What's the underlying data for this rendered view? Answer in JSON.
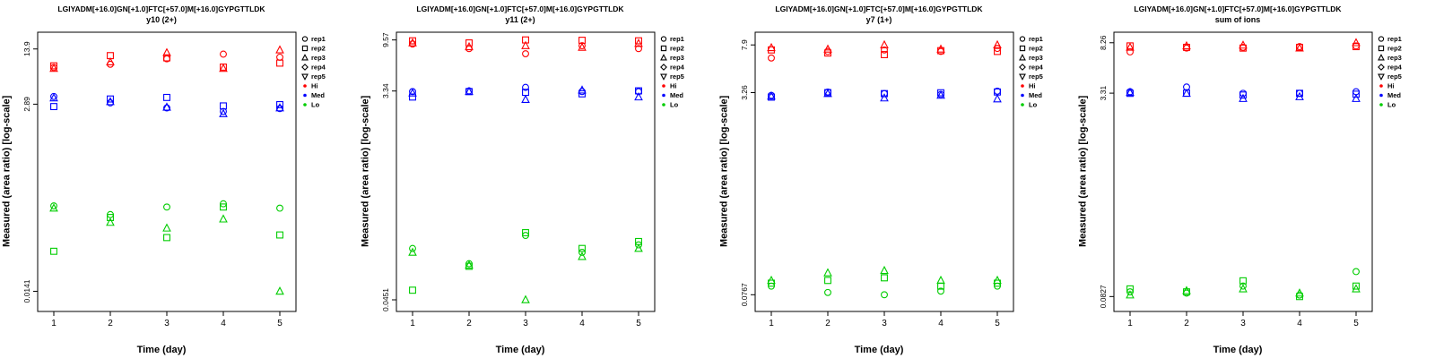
{
  "legend": {
    "rep_items": [
      {
        "label": "rep1",
        "shape": "circle"
      },
      {
        "label": "rep2",
        "shape": "square"
      },
      {
        "label": "rep3",
        "shape": "triangle"
      },
      {
        "label": "rep4",
        "shape": "diamond"
      },
      {
        "label": "rep5",
        "shape": "triangle-down"
      }
    ],
    "level_items": [
      {
        "label": "Hi",
        "color": "#FF0000"
      },
      {
        "label": "Med",
        "color": "#0000FF"
      },
      {
        "label": "Lo",
        "color": "#00CD00"
      }
    ]
  },
  "chart_data": [
    {
      "type": "scatter",
      "title": "LGIYADM[+16.0]GN[+1.0]FTC[+57.0]M[+16.0]GYPGTTLDK",
      "subtitle": "y10 (2+)",
      "xlabel": "Time (day)",
      "ylabel": "Measured (area ratio) [log-scale]",
      "x": [
        1,
        2,
        3,
        4,
        5
      ],
      "yticks": [
        {
          "label": "13.9",
          "value": 13.9
        },
        {
          "label": "2.89",
          "value": 2.89
        },
        {
          "label": "0.0141",
          "value": 0.0141
        }
      ],
      "ylim_log10": [
        -2.1,
        1.35
      ],
      "grid": false,
      "legend_position": "right",
      "series": [
        {
          "level": "Hi",
          "rep": "rep1",
          "shape": "circle",
          "color": "#FF0000",
          "values": [
            8.2,
            9.0,
            10.5,
            12.0,
            11.0
          ]
        },
        {
          "level": "Hi",
          "rep": "rep2",
          "shape": "square",
          "color": "#FF0000",
          "values": [
            8.6,
            11.5,
            10.8,
            8.3,
            9.3
          ]
        },
        {
          "level": "Hi",
          "rep": "rep3",
          "shape": "triangle",
          "color": "#FF0000",
          "values": [
            8.0,
            9.6,
            12.5,
            8.0,
            13.5
          ]
        },
        {
          "level": "Med",
          "rep": "rep1",
          "shape": "circle",
          "color": "#0000FF",
          "values": [
            3.6,
            3.0,
            2.6,
            2.35,
            2.55
          ]
        },
        {
          "level": "Med",
          "rep": "rep2",
          "shape": "square",
          "color": "#0000FF",
          "values": [
            2.7,
            3.35,
            3.5,
            2.75,
            2.85
          ]
        },
        {
          "level": "Med",
          "rep": "rep3",
          "shape": "triangle",
          "color": "#0000FF",
          "values": [
            3.45,
            3.1,
            2.65,
            2.2,
            2.6
          ]
        },
        {
          "level": "Lo",
          "rep": "rep1",
          "shape": "circle",
          "color": "#00CD00",
          "values": [
            0.16,
            0.125,
            0.155,
            0.17,
            0.15
          ]
        },
        {
          "level": "Lo",
          "rep": "rep2",
          "shape": "square",
          "color": "#00CD00",
          "values": [
            0.044,
            0.115,
            0.065,
            0.155,
            0.07
          ]
        },
        {
          "level": "Lo",
          "rep": "rep3",
          "shape": "triangle",
          "color": "#00CD00",
          "values": [
            0.15,
            0.1,
            0.085,
            0.11,
            0.0141
          ]
        }
      ]
    },
    {
      "type": "scatter",
      "title": "LGIYADM[+16.0]GN[+1.0]FTC[+57.0]M[+16.0]GYPGTTLDK",
      "subtitle": "y11 (2+)",
      "xlabel": "Time (day)",
      "ylabel": "Measured (area ratio) [log-scale]",
      "x": [
        1,
        2,
        3,
        4,
        5
      ],
      "yticks": [
        {
          "label": "9.57",
          "value": 9.57
        },
        {
          "label": "3.34",
          "value": 3.34
        },
        {
          "label": "0.0451",
          "value": 0.0451
        }
      ],
      "ylim_log10": [
        -1.45,
        1.05
      ],
      "grid": false,
      "legend_position": "right",
      "series": [
        {
          "level": "Hi",
          "rep": "rep1",
          "shape": "circle",
          "color": "#FF0000",
          "values": [
            8.8,
            8.0,
            7.2,
            8.5,
            8.0
          ]
        },
        {
          "level": "Hi",
          "rep": "rep2",
          "shape": "square",
          "color": "#FF0000",
          "values": [
            9.4,
            9.0,
            9.57,
            9.5,
            9.4
          ]
        },
        {
          "level": "Hi",
          "rep": "rep3",
          "shape": "triangle",
          "color": "#FF0000",
          "values": [
            9.0,
            8.3,
            8.5,
            8.2,
            8.9
          ]
        },
        {
          "level": "Med",
          "rep": "rep1",
          "shape": "circle",
          "color": "#0000FF",
          "values": [
            3.3,
            3.35,
            3.6,
            3.3,
            3.3
          ]
        },
        {
          "level": "Med",
          "rep": "rep2",
          "shape": "square",
          "color": "#0000FF",
          "values": [
            2.95,
            3.3,
            3.25,
            3.15,
            3.35
          ]
        },
        {
          "level": "Med",
          "rep": "rep3",
          "shape": "triangle",
          "color": "#0000FF",
          "values": [
            3.2,
            3.3,
            2.8,
            3.4,
            2.95
          ]
        },
        {
          "level": "Lo",
          "rep": "rep1",
          "shape": "circle",
          "color": "#00CD00",
          "values": [
            0.13,
            0.095,
            0.17,
            0.12,
            0.14
          ]
        },
        {
          "level": "Lo",
          "rep": "rep2",
          "shape": "square",
          "color": "#00CD00",
          "values": [
            0.055,
            0.09,
            0.18,
            0.13,
            0.15
          ]
        },
        {
          "level": "Lo",
          "rep": "rep3",
          "shape": "triangle",
          "color": "#00CD00",
          "values": [
            0.12,
            0.092,
            0.0451,
            0.11,
            0.13
          ]
        }
      ]
    },
    {
      "type": "scatter",
      "title": "LGIYADM[+16.0]GN[+1.0]FTC[+57.0]M[+16.0]GYPGTTLDK",
      "subtitle": "y7 (1+)",
      "xlabel": "Time (day)",
      "ylabel": "Measured (area ratio) [log-scale]",
      "x": [
        1,
        2,
        3,
        4,
        5
      ],
      "yticks": [
        {
          "label": "7.9",
          "value": 7.9
        },
        {
          "label": "3.26",
          "value": 3.26
        },
        {
          "label": "0.0767",
          "value": 0.0767
        }
      ],
      "ylim_log10": [
        -1.25,
        1.0
      ],
      "grid": false,
      "legend_position": "right",
      "series": [
        {
          "level": "Hi",
          "rep": "rep1",
          "shape": "circle",
          "color": "#FF0000",
          "values": [
            6.2,
            7.0,
            7.2,
            7.0,
            7.4
          ]
        },
        {
          "level": "Hi",
          "rep": "rep2",
          "shape": "square",
          "color": "#FF0000",
          "values": [
            7.2,
            6.8,
            6.6,
            7.1,
            7.0
          ]
        },
        {
          "level": "Hi",
          "rep": "rep3",
          "shape": "triangle",
          "color": "#FF0000",
          "values": [
            7.5,
            7.3,
            7.9,
            7.3,
            7.9
          ]
        },
        {
          "level": "Med",
          "rep": "rep1",
          "shape": "circle",
          "color": "#0000FF",
          "values": [
            3.1,
            3.3,
            3.2,
            3.15,
            3.35
          ]
        },
        {
          "level": "Med",
          "rep": "rep2",
          "shape": "square",
          "color": "#0000FF",
          "values": [
            3.0,
            3.26,
            3.2,
            3.25,
            3.3
          ]
        },
        {
          "level": "Med",
          "rep": "rep3",
          "shape": "triangle",
          "color": "#0000FF",
          "values": [
            3.05,
            3.2,
            2.95,
            3.1,
            2.9
          ]
        },
        {
          "level": "Lo",
          "rep": "rep1",
          "shape": "circle",
          "color": "#00CD00",
          "values": [
            0.09,
            0.08,
            0.0767,
            0.082,
            0.09
          ]
        },
        {
          "level": "Lo",
          "rep": "rep2",
          "shape": "square",
          "color": "#00CD00",
          "values": [
            0.095,
            0.1,
            0.105,
            0.09,
            0.095
          ]
        },
        {
          "level": "Lo",
          "rep": "rep3",
          "shape": "triangle",
          "color": "#00CD00",
          "values": [
            0.1,
            0.115,
            0.12,
            0.1,
            0.1
          ]
        }
      ]
    },
    {
      "type": "scatter",
      "title": "LGIYADM[+16.0]GN[+1.0]FTC[+57.0]M[+16.0]GYPGTTLDK",
      "subtitle": "sum of ions",
      "xlabel": "Time (day)",
      "ylabel": "Measured (area ratio) [log-scale]",
      "x": [
        1,
        2,
        3,
        4,
        5
      ],
      "yticks": [
        {
          "label": "8.26",
          "value": 8.26
        },
        {
          "label": "3.31",
          "value": 3.31
        },
        {
          "label": "0.0827",
          "value": 0.0827
        }
      ],
      "ylim_log10": [
        -1.2,
        1.0
      ],
      "grid": false,
      "legend_position": "right",
      "series": [
        {
          "level": "Hi",
          "rep": "rep1",
          "shape": "circle",
          "color": "#FF0000",
          "values": [
            7.0,
            7.5,
            7.6,
            7.7,
            7.8
          ]
        },
        {
          "level": "Hi",
          "rep": "rep2",
          "shape": "square",
          "color": "#FF0000",
          "values": [
            7.8,
            7.6,
            7.5,
            7.6,
            7.7
          ]
        },
        {
          "level": "Hi",
          "rep": "rep3",
          "shape": "triangle",
          "color": "#FF0000",
          "values": [
            7.6,
            7.8,
            7.9,
            7.5,
            8.26
          ]
        },
        {
          "level": "Med",
          "rep": "rep1",
          "shape": "circle",
          "color": "#0000FF",
          "values": [
            3.4,
            3.7,
            3.3,
            3.3,
            3.4
          ]
        },
        {
          "level": "Med",
          "rep": "rep2",
          "shape": "square",
          "color": "#0000FF",
          "values": [
            3.3,
            3.31,
            3.2,
            3.3,
            3.25
          ]
        },
        {
          "level": "Med",
          "rep": "rep3",
          "shape": "triangle",
          "color": "#0000FF",
          "values": [
            3.35,
            3.3,
            3.0,
            3.1,
            3.0
          ]
        },
        {
          "level": "Lo",
          "rep": "rep1",
          "shape": "circle",
          "color": "#00CD00",
          "values": [
            0.09,
            0.088,
            0.1,
            0.085,
            0.13
          ]
        },
        {
          "level": "Lo",
          "rep": "rep2",
          "shape": "square",
          "color": "#00CD00",
          "values": [
            0.095,
            0.09,
            0.11,
            0.0827,
            0.1
          ]
        },
        {
          "level": "Lo",
          "rep": "rep3",
          "shape": "triangle",
          "color": "#00CD00",
          "values": [
            0.085,
            0.092,
            0.095,
            0.088,
            0.095
          ]
        }
      ]
    }
  ]
}
